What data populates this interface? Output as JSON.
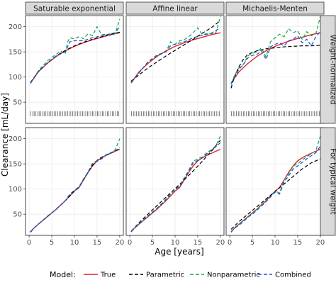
{
  "chart_data": {
    "type": "line",
    "xlabel": "Age [years]",
    "ylabel": "Clearance [mL/day]",
    "col_facets": [
      "Saturable exponential",
      "Affine linear",
      "Michaelis-Menten"
    ],
    "row_facets": [
      "Weight-normalized",
      "For typical weight"
    ],
    "x_ticks": [
      0,
      5,
      10,
      15,
      20
    ],
    "y_ticks": [
      50,
      100,
      150,
      200
    ],
    "xlim": [
      -0.8,
      20.8
    ],
    "ylim": [
      8,
      222
    ],
    "legend_title": "Model:",
    "legend_position": "bottom",
    "series_styles": [
      {
        "name": "True",
        "color": "#dc2626",
        "dash": "none"
      },
      {
        "name": "Parametric",
        "color": "#000000",
        "dash": "5,3"
      },
      {
        "name": "Nonparametric",
        "color": "#16a34a",
        "dash": "5,3"
      },
      {
        "name": "Combined",
        "color": "#1d4ed8",
        "dash": "5,3"
      }
    ],
    "rug": [
      0.4,
      0.8,
      1.1,
      1.5,
      1.9,
      2.2,
      2.6,
      3.0,
      3.3,
      3.7,
      4.1,
      4.4,
      4.8,
      5.2,
      5.5,
      5.9,
      6.3,
      6.6,
      7.0,
      7.4,
      7.7,
      8.1,
      8.5,
      8.8,
      9.2,
      9.6,
      9.9,
      10.3,
      10.7,
      11.0,
      11.4,
      11.8,
      12.1,
      12.5,
      12.9,
      13.2,
      13.6,
      14.0,
      14.3,
      14.7,
      15.1,
      15.4,
      15.8,
      16.2,
      16.5,
      16.9,
      17.3,
      17.6,
      18.0,
      18.4,
      18.7,
      19.1,
      19.5,
      19.8
    ],
    "panels": [
      {
        "row": 0,
        "col": 0,
        "rug": true,
        "series": [
          {
            "name": "True",
            "x": [
              0.3,
              2,
              4,
              6,
              8,
              10,
              12,
              14,
              16,
              18,
              20
            ],
            "y": [
              88,
              110,
              127,
              141,
              152,
              161,
              168,
              174,
              179,
              184,
              188
            ]
          },
          {
            "name": "Parametric",
            "x": [
              0.3,
              2,
              4,
              6,
              8,
              10,
              12,
              14,
              16,
              18,
              20
            ],
            "y": [
              89,
              111,
              128,
              142,
              153,
              162,
              169,
              175,
              180,
              185,
              189
            ]
          },
          {
            "name": "Nonparametric",
            "x": [
              0.3,
              2,
              4,
              5,
              6,
              7,
              8,
              8.5,
              9,
              10,
              11,
              12,
              13,
              14,
              15,
              16,
              17,
              18,
              19,
              20
            ],
            "y": [
              87,
              112,
              132,
              139,
              145,
              152,
              146,
              170,
              178,
              176,
              180,
              176,
              186,
              182,
              200,
              184,
              185,
              182,
              186,
              215
            ]
          },
          {
            "name": "Combined",
            "x": [
              0.3,
              2,
              4,
              6,
              8,
              9,
              10,
              12,
              14,
              16,
              18,
              19,
              20
            ],
            "y": [
              88,
              110,
              128,
              142,
              150,
              170,
              172,
              172,
              178,
              182,
              186,
              188,
              200
            ]
          }
        ]
      },
      {
        "row": 0,
        "col": 1,
        "rug": true,
        "series": [
          {
            "name": "True",
            "x": [
              0.3,
              2,
              4,
              6,
              8,
              10,
              12,
              14,
              16,
              18,
              20
            ],
            "y": [
              88,
              110,
              127,
              141,
              152,
              161,
              168,
              174,
              179,
              184,
              188
            ]
          },
          {
            "name": "Parametric",
            "x": [
              0.3,
              2,
              4,
              6,
              8,
              10,
              12,
              14,
              16,
              18,
              20
            ],
            "y": [
              92,
              104,
              118,
              130,
              142,
              153,
              164,
              175,
              187,
              198,
              212
            ]
          },
          {
            "name": "Nonparametric",
            "x": [
              0.3,
              2,
              4,
              6,
              8,
              9,
              10,
              11,
              12,
              13,
              14,
              15,
              16,
              17,
              18,
              19,
              20
            ],
            "y": [
              90,
              108,
              130,
              144,
              150,
              170,
              165,
              172,
              174,
              180,
              188,
              198,
              184,
              186,
              186,
              188,
              220
            ]
          },
          {
            "name": "Combined",
            "x": [
              0.3,
              2,
              4,
              6,
              8,
              9,
              10,
              12,
              14,
              16,
              18,
              20
            ],
            "y": [
              90,
              108,
              130,
              142,
              150,
              162,
              165,
              170,
              178,
              183,
              187,
              198
            ]
          }
        ]
      },
      {
        "row": 0,
        "col": 2,
        "rug": true,
        "series": [
          {
            "name": "True",
            "x": [
              0.3,
              2,
              4,
              6,
              8,
              10,
              12,
              14,
              16,
              18,
              20
            ],
            "y": [
              88,
              110,
              127,
              141,
              152,
              161,
              168,
              174,
              179,
              184,
              188
            ]
          },
          {
            "name": "Parametric",
            "x": [
              0.3,
              1,
              2,
              3,
              4,
              6,
              8,
              10,
              12,
              14,
              16,
              18,
              20
            ],
            "y": [
              78,
              100,
              120,
              135,
              145,
              152,
              156,
              158,
              160,
              161,
              162,
              162,
              163
            ]
          },
          {
            "name": "Nonparametric",
            "x": [
              0.3,
              1,
              2,
              3,
              4,
              5,
              6,
              7,
              8,
              9,
              10,
              11,
              12,
              13,
              14,
              15,
              16,
              17,
              18,
              19,
              20
            ],
            "y": [
              85,
              102,
              118,
              125,
              142,
              147,
              150,
              158,
              140,
              170,
              178,
              185,
              180,
              196,
              188,
              192,
              175,
              190,
              182,
              186,
              220
            ]
          },
          {
            "name": "Combined",
            "x": [
              0.3,
              1,
              2,
              3,
              4,
              5,
              6,
              7,
              8,
              9,
              10,
              11,
              12,
              13,
              14,
              15,
              16,
              17,
              18,
              19,
              20
            ],
            "y": [
              88,
              98,
              115,
              125,
              138,
              143,
              145,
              152,
              135,
              160,
              165,
              168,
              162,
              172,
              175,
              182,
              168,
              175,
              162,
              180,
              190
            ]
          }
        ]
      },
      {
        "row": 1,
        "col": 0,
        "rug": false,
        "series": [
          {
            "name": "True",
            "x": [
              0.3,
              1,
              2,
              4,
              6,
              8,
              10,
              11,
              12,
              13,
              14,
              15,
              16,
              17,
              18,
              19,
              20
            ],
            "y": [
              15,
              22,
              30,
              45,
              60,
              77,
              96,
              103,
              118,
              133,
              146,
              156,
              162,
              167,
              171,
              175,
              179
            ]
          },
          {
            "name": "Parametric",
            "x": [
              0.3,
              1,
              2,
              4,
              6,
              8,
              10,
              11,
              12,
              13,
              14,
              15,
              16,
              17,
              18,
              19,
              20
            ],
            "y": [
              15,
              22,
              30,
              45,
              60,
              77,
              96,
              103,
              118,
              133,
              147,
              157,
              163,
              168,
              172,
              176,
              180
            ]
          },
          {
            "name": "Nonparametric",
            "x": [
              0.3,
              1,
              2,
              4,
              6,
              8,
              9,
              10,
              11,
              12,
              13,
              14,
              15,
              16,
              17,
              18,
              19,
              20
            ],
            "y": [
              14,
              22,
              30,
              46,
              60,
              77,
              90,
              98,
              104,
              120,
              134,
              152,
              156,
              160,
              168,
              172,
              178,
              200
            ]
          },
          {
            "name": "Combined",
            "x": [
              0.3,
              1,
              2,
              4,
              6,
              8,
              9,
              10,
              11,
              12,
              13,
              14,
              15,
              16,
              17,
              18,
              19,
              20
            ],
            "y": [
              14,
              22,
              30,
              45,
              60,
              77,
              90,
              97,
              104,
              119,
              133,
              150,
              155,
              160,
              167,
              171,
              176,
              182
            ]
          }
        ]
      },
      {
        "row": 1,
        "col": 1,
        "rug": false,
        "series": [
          {
            "name": "True",
            "x": [
              0.3,
              1,
              2,
              4,
              6,
              8,
              10,
              11,
              12,
              13,
              14,
              15,
              16,
              17,
              18,
              19,
              20
            ],
            "y": [
              15,
              22,
              30,
              45,
              60,
              77,
              96,
              103,
              118,
              133,
              146,
              156,
              162,
              167,
              171,
              175,
              179
            ]
          },
          {
            "name": "Parametric",
            "x": [
              0.3,
              2,
              4,
              6,
              8,
              10,
              12,
              14,
              16,
              18,
              20
            ],
            "y": [
              16,
              33,
              50,
              67,
              84,
              101,
              118,
              136,
              155,
              175,
              197
            ]
          },
          {
            "name": "Nonparametric",
            "x": [
              0.3,
              1,
              2,
              4,
              6,
              8,
              9,
              10,
              11,
              12,
              13,
              14,
              15,
              16,
              17,
              18,
              19,
              20
            ],
            "y": [
              15,
              23,
              31,
              47,
              62,
              80,
              92,
              100,
              106,
              122,
              137,
              155,
              160,
              164,
              172,
              178,
              186,
              205
            ]
          },
          {
            "name": "Combined",
            "x": [
              0.3,
              1,
              2,
              4,
              6,
              8,
              9,
              10,
              11,
              12,
              13,
              14,
              15,
              16,
              17,
              18,
              19,
              20
            ],
            "y": [
              15,
              22,
              30,
              46,
              61,
              78,
              90,
              99,
              105,
              120,
              135,
              152,
              157,
              162,
              170,
              177,
              184,
              192
            ]
          }
        ]
      },
      {
        "row": 1,
        "col": 2,
        "rug": false,
        "series": [
          {
            "name": "True",
            "x": [
              0.3,
              1,
              2,
              4,
              6,
              8,
              10,
              11,
              12,
              13,
              14,
              15,
              16,
              17,
              18,
              19,
              20
            ],
            "y": [
              15,
              22,
              30,
              45,
              60,
              77,
              96,
              103,
              118,
              133,
              146,
              156,
              162,
              167,
              171,
              175,
              179
            ]
          },
          {
            "name": "Parametric",
            "x": [
              0.3,
              2,
              4,
              6,
              8,
              10,
              12,
              14,
              16,
              18,
              20
            ],
            "y": [
              20,
              35,
              50,
              65,
              80,
              95,
              110,
              125,
              140,
              152,
              160
            ]
          },
          {
            "name": "Nonparametric",
            "x": [
              0.3,
              1,
              2,
              3,
              4,
              5,
              6,
              7,
              8,
              9,
              10,
              11,
              12,
              13,
              14,
              15,
              16,
              17,
              18,
              19,
              20
            ],
            "y": [
              14,
              23,
              30,
              37,
              45,
              52,
              60,
              68,
              76,
              85,
              96,
              92,
              118,
              130,
              146,
              150,
              158,
              164,
              170,
              176,
              205
            ]
          },
          {
            "name": "Combined",
            "x": [
              0.3,
              1,
              2,
              3,
              4,
              5,
              6,
              7,
              8,
              9,
              10,
              11,
              12,
              13,
              14,
              15,
              16,
              17,
              18,
              19,
              20
            ],
            "y": [
              15,
              22,
              28,
              35,
              44,
              50,
              58,
              66,
              75,
              84,
              94,
              90,
              114,
              126,
              140,
              146,
              153,
              160,
              166,
              172,
              185
            ]
          }
        ]
      }
    ]
  }
}
